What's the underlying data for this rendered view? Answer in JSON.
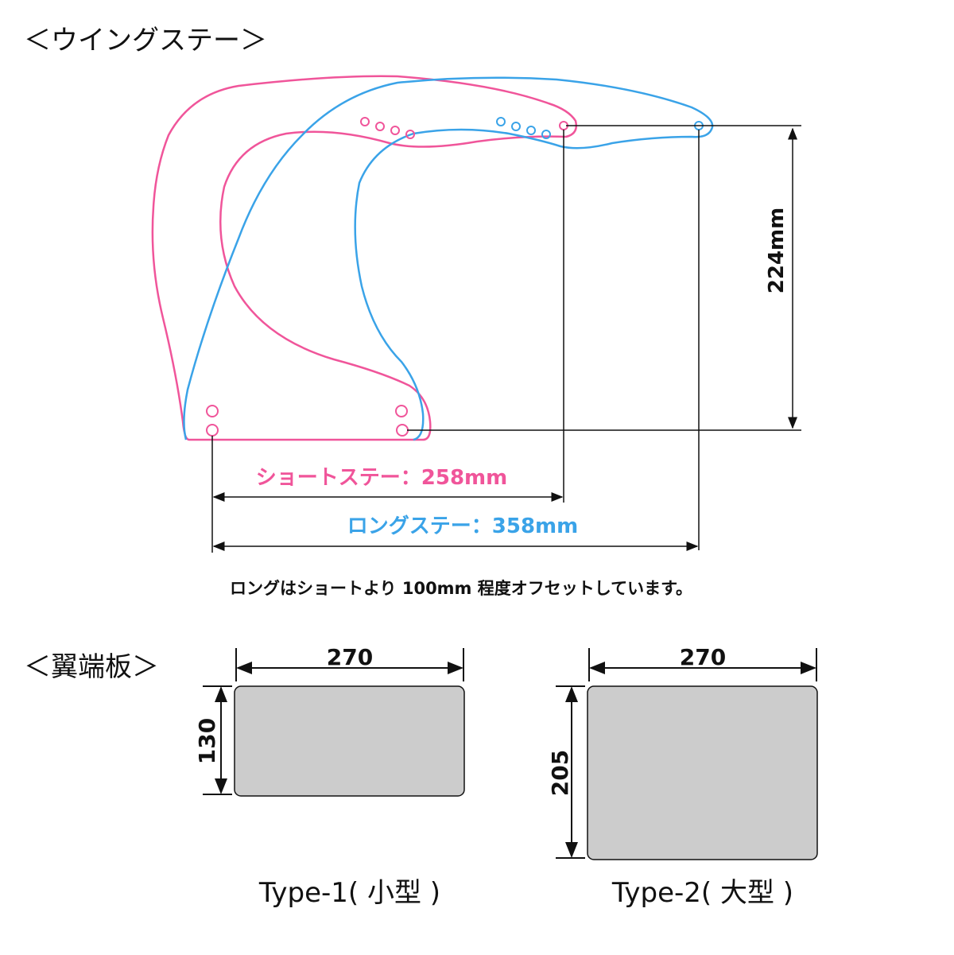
{
  "colors": {
    "short": "#f0559a",
    "long": "#3aa3e8",
    "panel_fill": "#cccccc",
    "line": "#111111"
  },
  "wing_stay": {
    "heading": "＜ウイングステー＞",
    "height_label": "224mm",
    "short_label": "ショートステー：258mm",
    "long_label": "ロングステー：358mm",
    "note": "ロングはショートより 100mm 程度オフセットしています。"
  },
  "end_plate": {
    "heading": "＜翼端板＞",
    "types": [
      {
        "label": "Type-1( 小型 )",
        "width": "270",
        "height": "130"
      },
      {
        "label": "Type-2( 大型 )",
        "width": "270",
        "height": "205"
      }
    ]
  }
}
